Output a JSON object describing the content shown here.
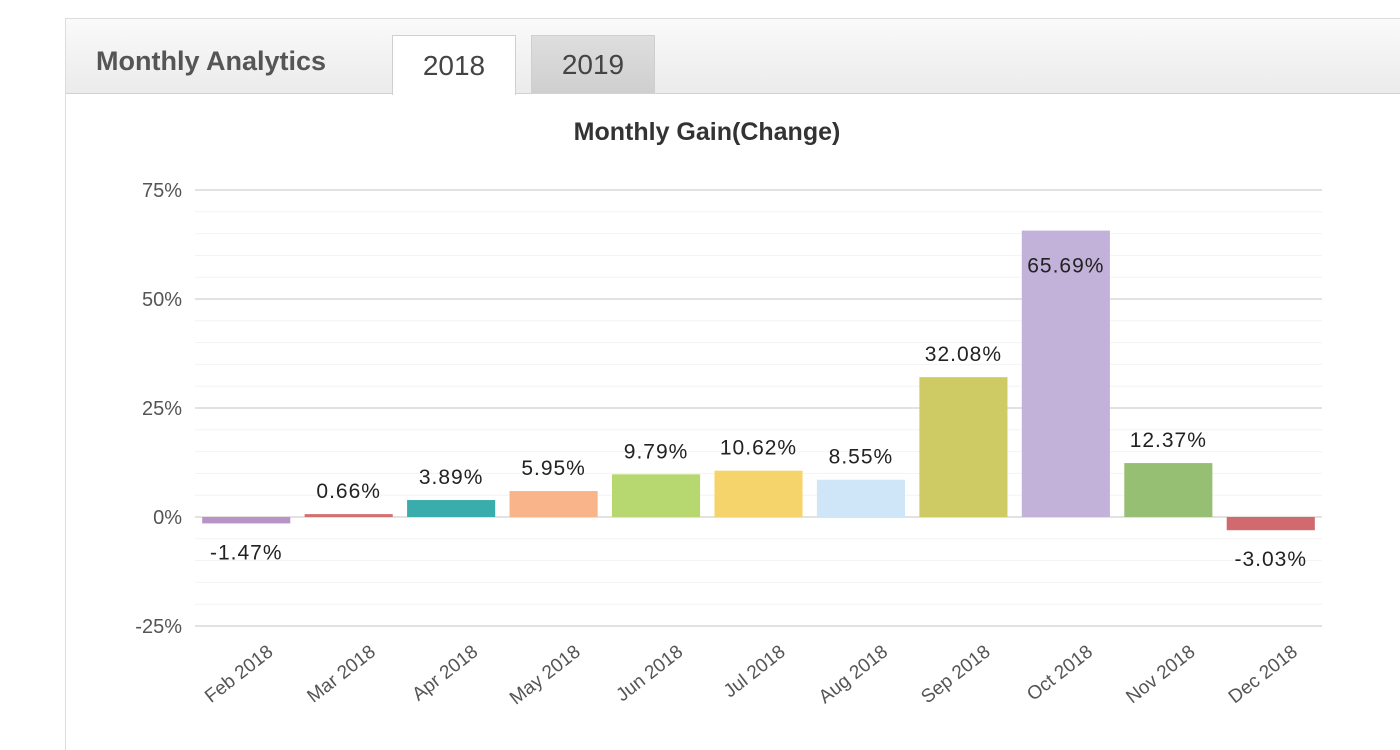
{
  "panel": {
    "title": "Monthly Analytics",
    "tabs": [
      {
        "label": "2018",
        "active": true
      },
      {
        "label": "2019",
        "active": false
      }
    ]
  },
  "chart_data": {
    "type": "bar",
    "title": "Monthly Gain(Change)",
    "xlabel": "",
    "ylabel": "",
    "ylim": [
      -25,
      75
    ],
    "yticks": [
      75,
      50,
      25,
      0,
      -25
    ],
    "ytick_labels": [
      "75%",
      "50%",
      "25%",
      "0%",
      "-25%"
    ],
    "grid": true,
    "categories": [
      "Feb 2018",
      "Mar 2018",
      "Apr 2018",
      "May 2018",
      "Jun 2018",
      "Jul 2018",
      "Aug 2018",
      "Sep 2018",
      "Oct 2018",
      "Nov 2018",
      "Dec 2018"
    ],
    "values": [
      -1.47,
      0.66,
      3.89,
      5.95,
      9.79,
      10.62,
      8.55,
      32.08,
      65.69,
      12.37,
      -3.03
    ],
    "value_labels": [
      "-1.47%",
      "0.66%",
      "3.89%",
      "5.95%",
      "9.79%",
      "10.62%",
      "8.55%",
      "32.08%",
      "65.69%",
      "12.37%",
      "-3.03%"
    ],
    "colors": [
      "#b894c6",
      "#d36f6f",
      "#3aacac",
      "#f9b48a",
      "#b7d770",
      "#f5d46c",
      "#cfe5f8",
      "#cfcb64",
      "#c2b1d8",
      "#97bf73",
      "#d16a6f"
    ]
  }
}
